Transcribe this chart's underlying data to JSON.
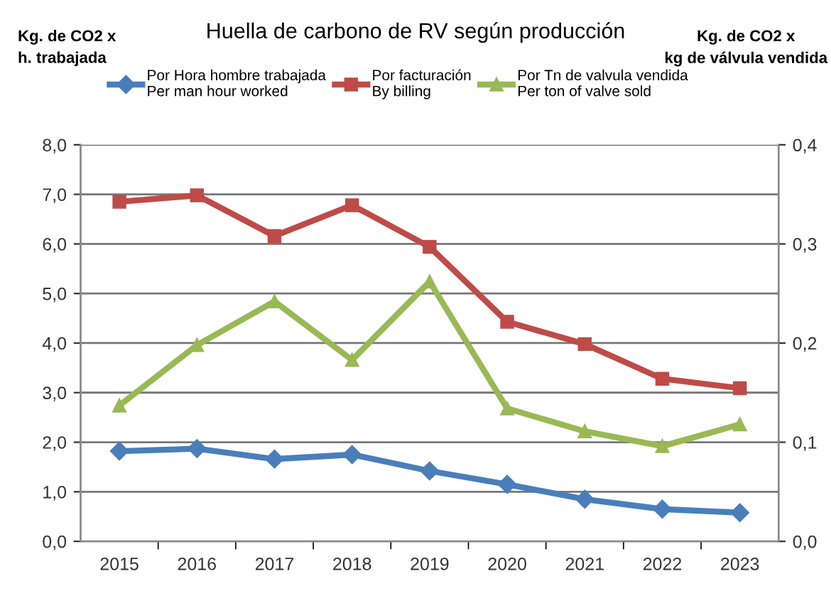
{
  "chart_data": {
    "type": "line",
    "title": "Huella de carbono de RV según producción",
    "ylabel": "Kg. de CO2 x\nh. trabajada",
    "y2label": "Kg. de CO2 x\nkg de válvula vendida",
    "categories": [
      "2015",
      "2016",
      "2017",
      "2018",
      "2019",
      "2020",
      "2021",
      "2022",
      "2023"
    ],
    "series": [
      {
        "name": "Por Hora hombre trabajada\nPer man hour worked",
        "color": "#4a7ebb",
        "marker": "diamond",
        "values": [
          1.82,
          1.87,
          1.66,
          1.75,
          1.42,
          1.15,
          0.85,
          0.65,
          0.58
        ]
      },
      {
        "name": "Por facturación\nBy billing",
        "color": "#be4b48",
        "marker": "square",
        "values": [
          6.85,
          6.98,
          6.16,
          6.78,
          5.94,
          4.43,
          3.98,
          3.28,
          3.09
        ]
      },
      {
        "name": "Por Tn de valvula vendida\nPer ton of valve sold",
        "color": "#98b954",
        "marker": "triangle",
        "axis": "y2",
        "values": [
          0.137,
          0.198,
          0.242,
          0.183,
          0.262,
          0.134,
          0.111,
          0.096,
          0.118
        ]
      }
    ],
    "ylim": [
      0,
      8
    ],
    "yticks": [
      {
        "value": 0,
        "label": "0,0"
      },
      {
        "value": 1,
        "label": "1,0"
      },
      {
        "value": 2,
        "label": "2,0"
      },
      {
        "value": 3,
        "label": "3,0"
      },
      {
        "value": 4,
        "label": "4,0"
      },
      {
        "value": 5,
        "label": "5,0"
      },
      {
        "value": 6,
        "label": "6,0"
      },
      {
        "value": 7,
        "label": "7,0"
      },
      {
        "value": 8,
        "label": "8,0"
      }
    ],
    "y2lim": [
      0,
      0.4
    ],
    "y2ticks": [
      {
        "value": 0,
        "label": "0,0"
      },
      {
        "value": 0.1,
        "label": "0,1"
      },
      {
        "value": 0.2,
        "label": "0,2"
      },
      {
        "value": 0.3,
        "label": "0,3"
      },
      {
        "value": 0.4,
        "label": "0,4"
      }
    ],
    "grid": "y",
    "legend": "top",
    "line_style": "solid"
  }
}
